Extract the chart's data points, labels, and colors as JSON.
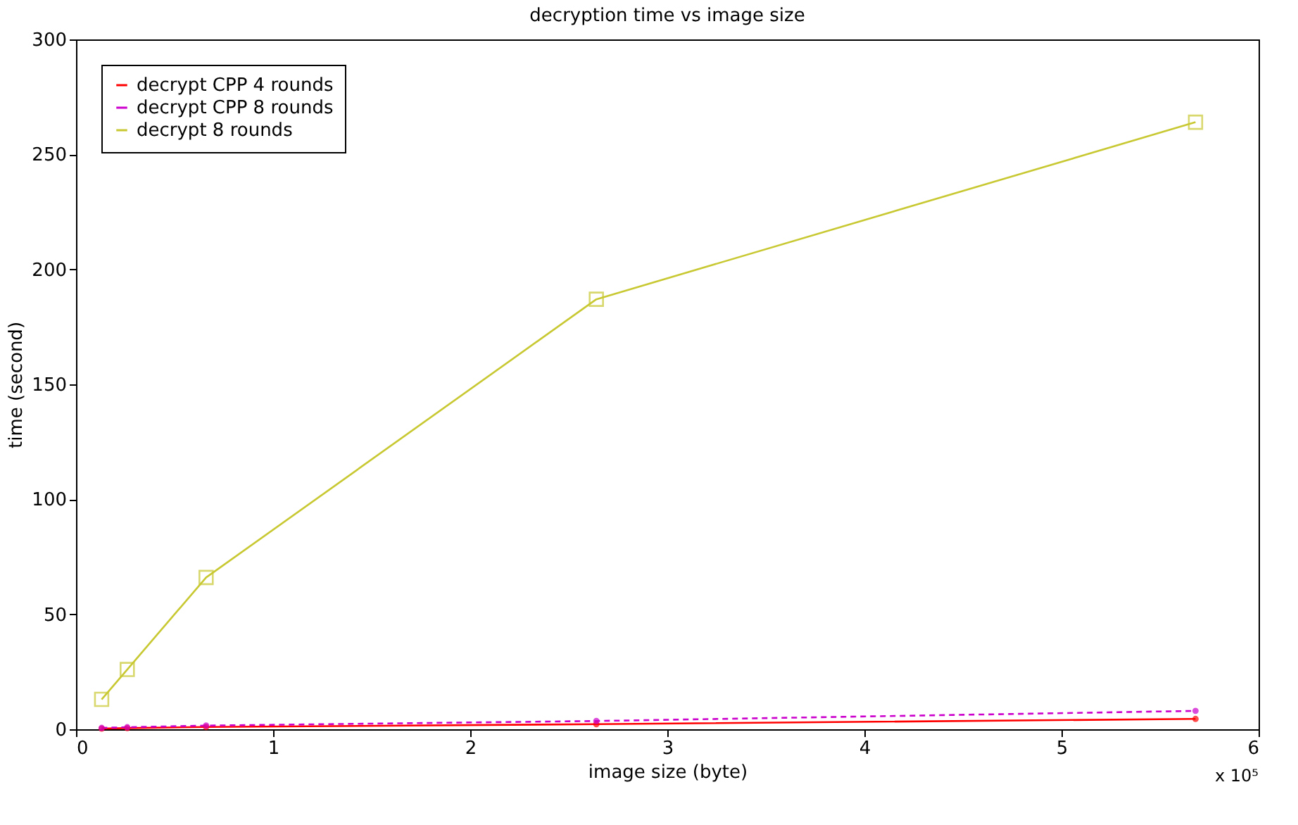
{
  "chart_data": {
    "type": "line",
    "title": "decryption time vs image size",
    "xlabel": "image size (byte)",
    "ylabel": "time (second)",
    "annotations": [
      "x 10⁵"
    ],
    "x": [
      0.13,
      0.26,
      0.66,
      2.64,
      5.68
    ],
    "series": [
      {
        "name": "decrypt CPP 4 rounds",
        "color": "#ff0000",
        "values": [
          0.3,
          0.5,
          1,
          2.2,
          4.5
        ],
        "marker": "circle",
        "line_style": "solid"
      },
      {
        "name": "decrypt CPP 8 rounds",
        "color": "#cc00cc",
        "values": [
          0.6,
          0.9,
          1.6,
          3.6,
          8
        ],
        "marker": "circle",
        "line_style": "dashed"
      },
      {
        "name": "decrypt 8 rounds",
        "color": "#c8c832",
        "values": [
          13,
          26,
          66,
          187,
          264
        ],
        "marker": "square",
        "line_style": "solid"
      }
    ],
    "xlim": [
      0,
      6
    ],
    "xticks": [
      0,
      1,
      2,
      3,
      4,
      5,
      6
    ],
    "ylim": [
      0,
      300
    ],
    "yticks": [
      0,
      50,
      100,
      150,
      200,
      250,
      300
    ],
    "grid": false,
    "legend": "top left"
  }
}
